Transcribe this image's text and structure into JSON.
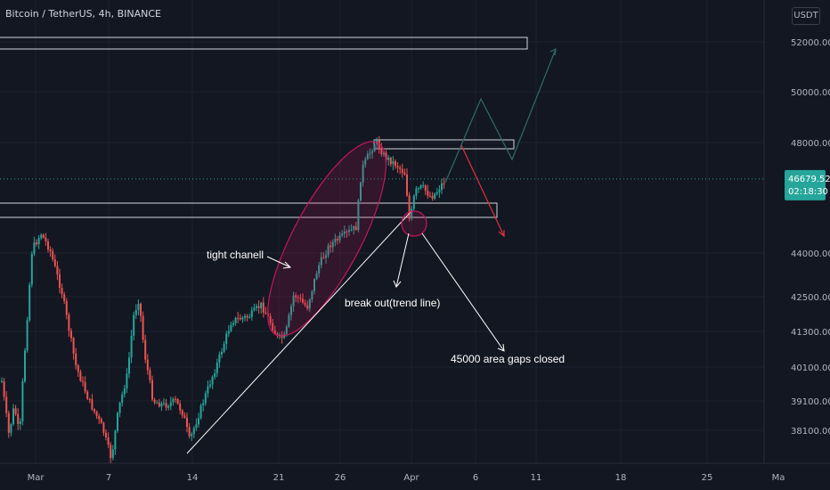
{
  "header": {
    "title": "Bitcoin / TetherUS, 4h, BINANCE",
    "currency": "USDT"
  },
  "chart_data": {
    "type": "candlestick",
    "symbol": "Bitcoin / TetherUS",
    "interval": "4h",
    "exchange": "BINANCE",
    "y_ticks": [
      52000,
      50000,
      48000,
      44000,
      42500,
      41300,
      40100,
      39100,
      38100
    ],
    "y_tick_labels": [
      "52000.00",
      "50000.00",
      "48000.00",
      "44000.00",
      "42500.00",
      "41300.00",
      "40100.00",
      "39100.00",
      "38100.00"
    ],
    "x_ticks": [
      "Mar",
      "7",
      "14",
      "21",
      "26",
      "Apr",
      "6",
      "11",
      "18",
      "25",
      "Ma"
    ],
    "last_price": "46679.52",
    "countdown": "02:18:30",
    "colors": {
      "background": "#131722",
      "up": "#26a69a",
      "down": "#ef5350",
      "last_price": "#26a69a",
      "ellipse": "#c2185b",
      "projection_up": "#2e6b6a",
      "projection_down": "#e0323c",
      "trendline": "#ffffff"
    },
    "annotations": [
      {
        "text": "tight chanell"
      },
      {
        "text": "break out(trend line)"
      },
      {
        "text": "45000 area gaps closed"
      }
    ]
  }
}
